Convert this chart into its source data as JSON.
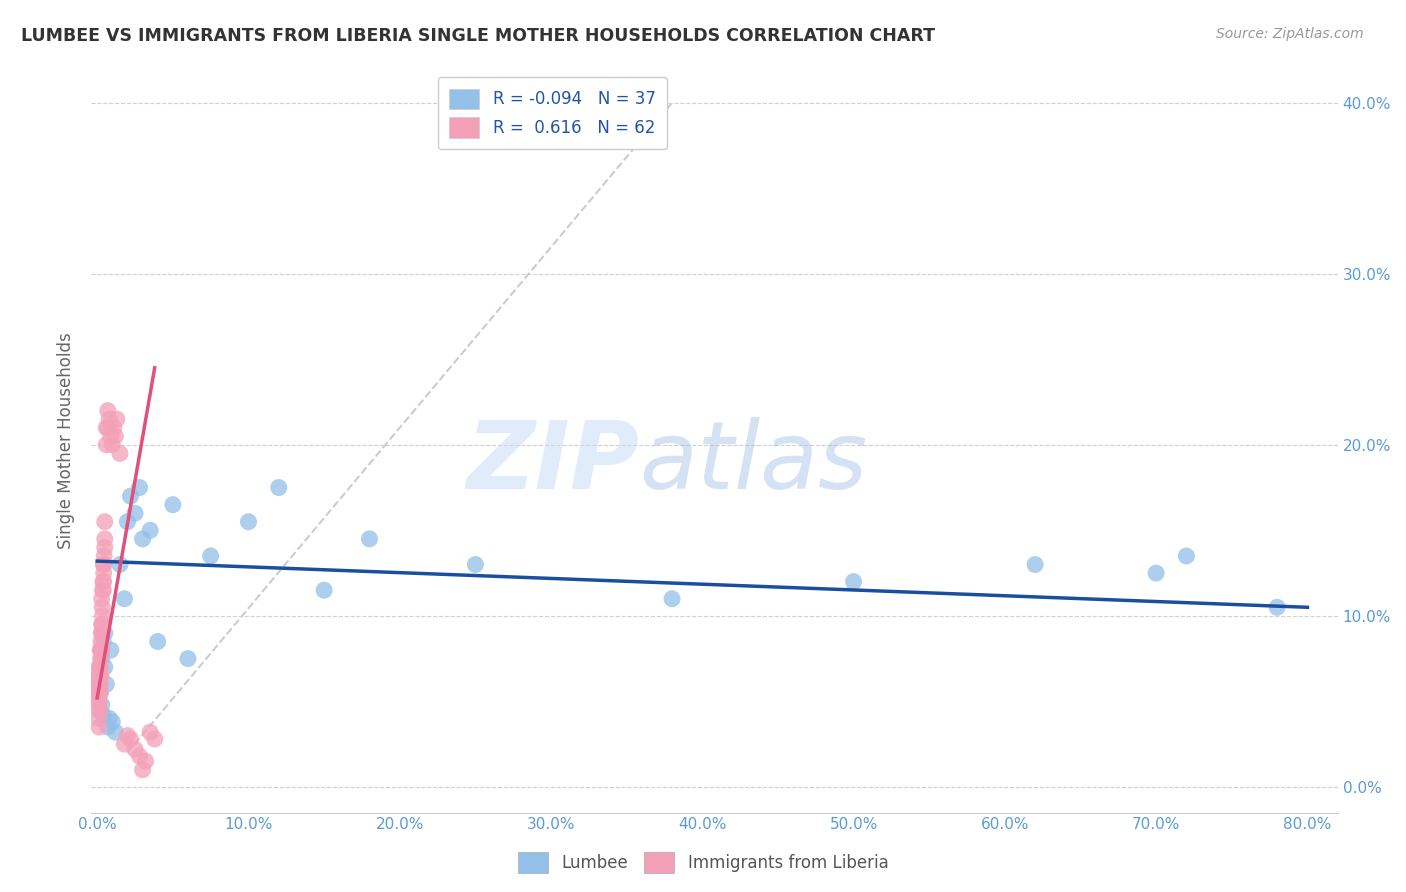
{
  "title": "LUMBEE VS IMMIGRANTS FROM LIBERIA SINGLE MOTHER HOUSEHOLDS CORRELATION CHART",
  "source": "Source: ZipAtlas.com",
  "ylabel": "Single Mother Households",
  "lumbee_color": "#92c0e8",
  "liberia_color": "#f4a0b8",
  "lumbee_line_color": "#1a4fa0",
  "liberia_line_color": "#e0507a",
  "diagonal_color": "#cccccc",
  "R_lumbee": -0.094,
  "N_lumbee": 37,
  "R_liberia": 0.616,
  "N_liberia": 62,
  "xlim": [
    -0.004,
    0.82
  ],
  "ylim": [
    -0.015,
    0.42
  ],
  "xticks": [
    0.0,
    0.1,
    0.2,
    0.3,
    0.4,
    0.5,
    0.6,
    0.7,
    0.8
  ],
  "yticks": [
    0.0,
    0.1,
    0.2,
    0.3,
    0.4
  ],
  "watermark_zip": "ZIP",
  "watermark_atlas": "atlas",
  "lumbee_x": [
    0.001,
    0.002,
    0.003,
    0.003,
    0.004,
    0.004,
    0.005,
    0.005,
    0.006,
    0.007,
    0.008,
    0.009,
    0.01,
    0.012,
    0.015,
    0.018,
    0.02,
    0.022,
    0.025,
    0.028,
    0.03,
    0.035,
    0.04,
    0.05,
    0.06,
    0.075,
    0.1,
    0.12,
    0.15,
    0.18,
    0.25,
    0.38,
    0.5,
    0.62,
    0.7,
    0.72,
    0.78
  ],
  "lumbee_y": [
    0.065,
    0.055,
    0.048,
    0.075,
    0.042,
    0.085,
    0.07,
    0.09,
    0.06,
    0.035,
    0.04,
    0.08,
    0.038,
    0.032,
    0.13,
    0.11,
    0.155,
    0.17,
    0.16,
    0.175,
    0.145,
    0.15,
    0.085,
    0.165,
    0.075,
    0.135,
    0.155,
    0.175,
    0.115,
    0.145,
    0.13,
    0.11,
    0.12,
    0.13,
    0.125,
    0.135,
    0.105
  ],
  "liberia_x": [
    0.0005,
    0.0006,
    0.0008,
    0.001,
    0.001,
    0.001,
    0.0012,
    0.0013,
    0.0014,
    0.0015,
    0.0016,
    0.0017,
    0.0018,
    0.002,
    0.002,
    0.002,
    0.002,
    0.002,
    0.0022,
    0.0023,
    0.0025,
    0.0025,
    0.0025,
    0.0028,
    0.003,
    0.003,
    0.003,
    0.003,
    0.0032,
    0.0033,
    0.0035,
    0.0036,
    0.0038,
    0.004,
    0.004,
    0.0042,
    0.0043,
    0.0045,
    0.0046,
    0.005,
    0.005,
    0.005,
    0.006,
    0.006,
    0.007,
    0.007,
    0.008,
    0.009,
    0.01,
    0.011,
    0.012,
    0.013,
    0.015,
    0.018,
    0.02,
    0.022,
    0.025,
    0.028,
    0.03,
    0.032,
    0.035,
    0.038
  ],
  "liberia_y": [
    0.055,
    0.06,
    0.045,
    0.04,
    0.05,
    0.07,
    0.035,
    0.05,
    0.055,
    0.06,
    0.065,
    0.07,
    0.045,
    0.055,
    0.06,
    0.065,
    0.07,
    0.08,
    0.075,
    0.08,
    0.065,
    0.08,
    0.085,
    0.09,
    0.08,
    0.09,
    0.095,
    0.11,
    0.095,
    0.105,
    0.1,
    0.115,
    0.12,
    0.115,
    0.13,
    0.12,
    0.125,
    0.13,
    0.135,
    0.14,
    0.145,
    0.155,
    0.2,
    0.21,
    0.21,
    0.22,
    0.215,
    0.205,
    0.2,
    0.21,
    0.205,
    0.215,
    0.195,
    0.025,
    0.03,
    0.028,
    0.022,
    0.018,
    0.01,
    0.015,
    0.032,
    0.028
  ],
  "lumbee_line_x": [
    0.0,
    0.8
  ],
  "lumbee_line_y": [
    0.132,
    0.105
  ],
  "liberia_line_x": [
    0.0,
    0.038
  ],
  "liberia_line_y": [
    0.052,
    0.245
  ]
}
